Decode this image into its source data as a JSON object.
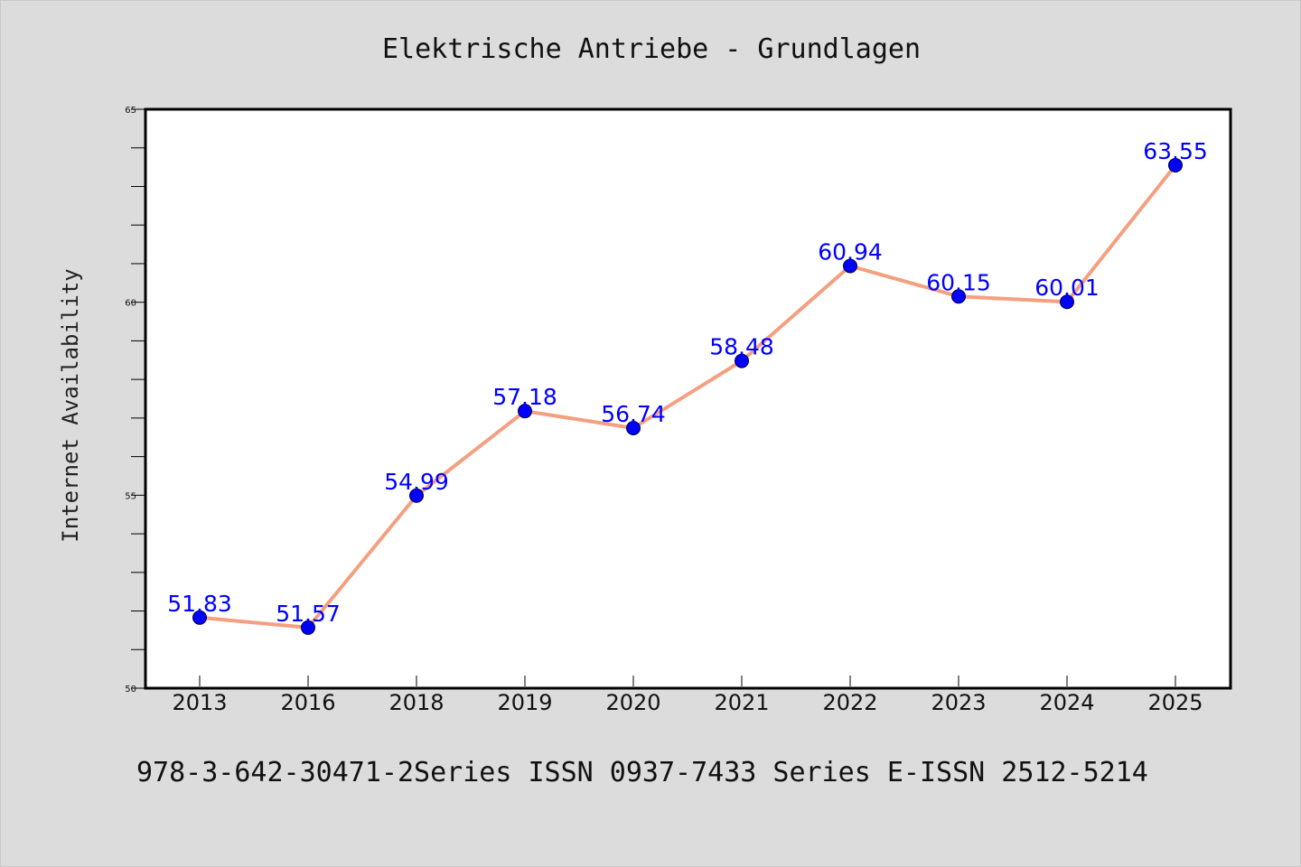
{
  "chart_data": {
    "type": "line",
    "title": "Elektrische Antriebe - Grundlagen",
    "ylabel": "Internet Availability",
    "xlabel": "",
    "categories": [
      "2013",
      "2016",
      "2018",
      "2019",
      "2020",
      "2021",
      "2022",
      "2023",
      "2024",
      "2025"
    ],
    "series": [
      {
        "values": [
          51.83,
          51.57,
          54.99,
          57.18,
          56.74,
          58.48,
          60.94,
          60.15,
          60.01,
          63.55
        ],
        "labels": [
          "51.83",
          "51.57",
          "54.99",
          "57.18",
          "56.74",
          "58.48",
          "60.94",
          "60.15",
          "60.01",
          "63.55"
        ],
        "line_color": "#f4a080",
        "marker_color": "#0000ff"
      }
    ],
    "ylim": [
      50,
      65
    ],
    "yticks": [
      "50",
      "55",
      "60",
      "65"
    ],
    "grid": false,
    "legend": "none"
  },
  "footer": {
    "text": "978-3-642-30471-2Series ISSN 0937-7433 Series E-ISSN 2512-5214"
  },
  "colors": {
    "background": "#dcdcdc",
    "plot_background": "#ffffff",
    "line": "#f4a080",
    "marker": "#0000ff",
    "data_label": "#0000ff"
  }
}
